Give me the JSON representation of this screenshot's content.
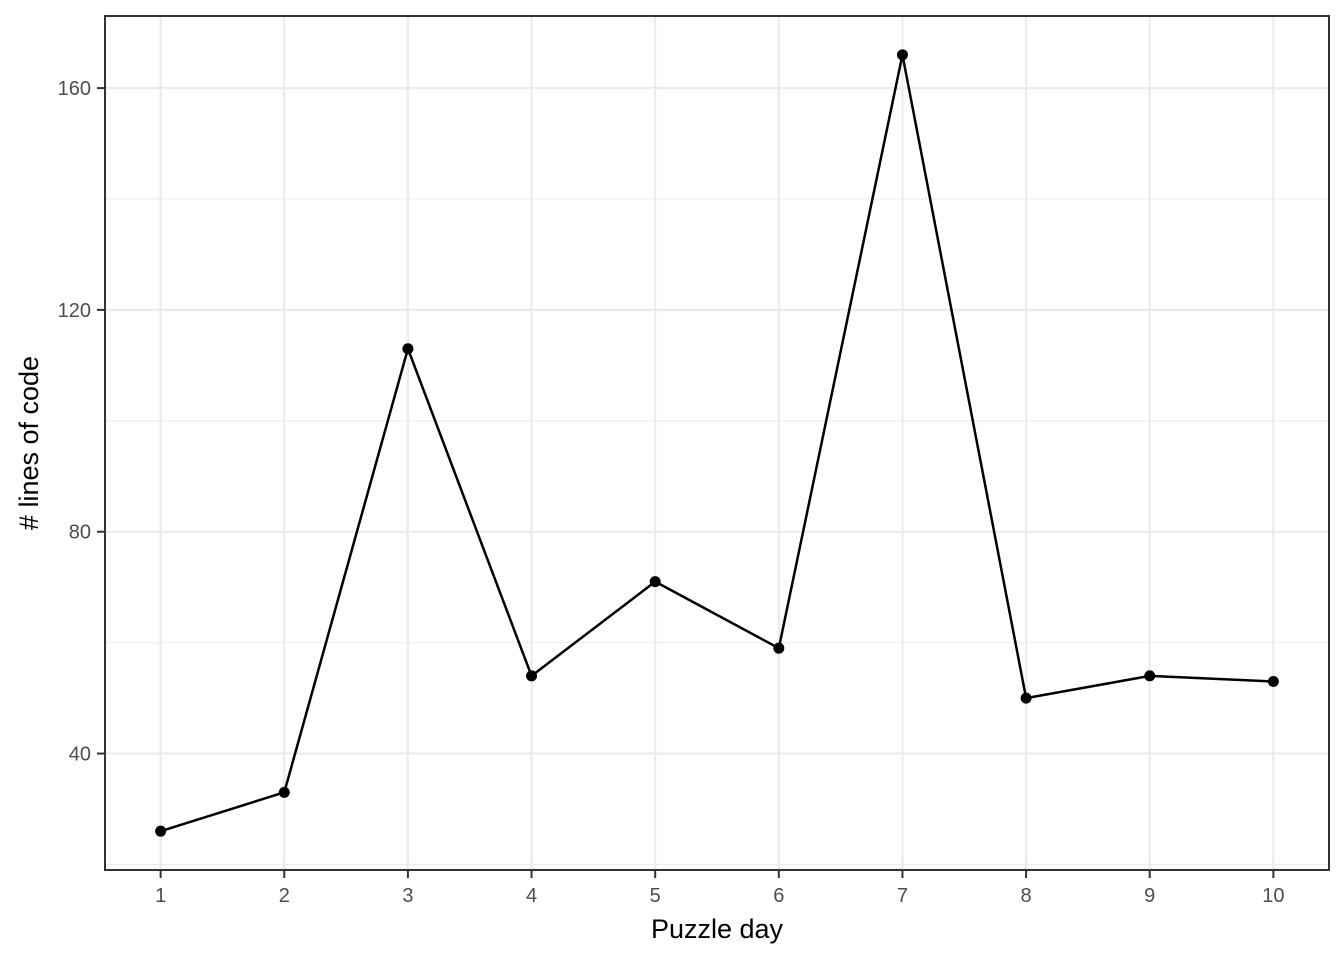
{
  "chart_data": {
    "type": "line",
    "title": "",
    "xlabel": "Puzzle day",
    "ylabel": "# lines of code",
    "x": [
      1,
      2,
      3,
      4,
      5,
      6,
      7,
      8,
      9,
      10
    ],
    "y": [
      26,
      33,
      113,
      54,
      71,
      59,
      166,
      50,
      54,
      53
    ],
    "xticks": [
      1,
      2,
      3,
      4,
      5,
      6,
      7,
      8,
      9,
      10
    ],
    "xtick_labels": [
      "1",
      "2",
      "3",
      "4",
      "5",
      "6",
      "7",
      "8",
      "9",
      "10"
    ],
    "yticks": [
      40,
      80,
      120,
      160
    ],
    "ytick_labels": [
      "40",
      "80",
      "120",
      "160"
    ],
    "xlim": [
      0.55,
      10.45
    ],
    "ylim": [
      19.0,
      173.0
    ],
    "grid": true,
    "legend": "none",
    "line_color": "#000000",
    "point_color": "#000000",
    "panel_border_color": "#333333",
    "grid_color": "#ebebeb"
  }
}
